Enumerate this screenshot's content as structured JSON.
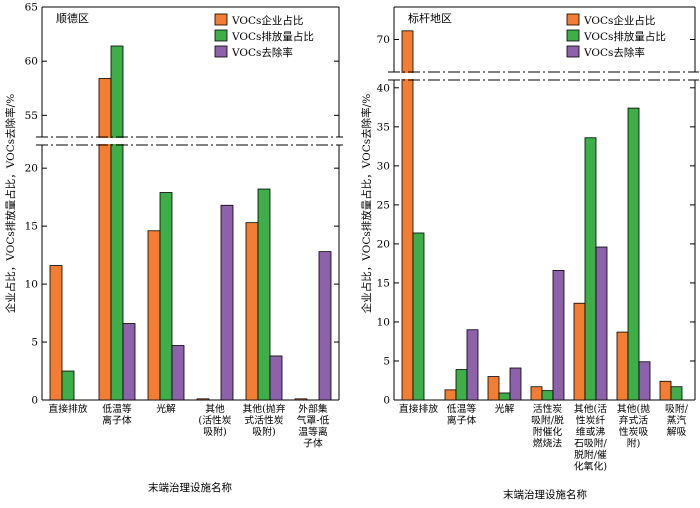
{
  "colors": {
    "share": "#F37D33",
    "emission": "#3EAE49",
    "removal": "#8E62AA"
  },
  "ylabel": "企业占比，VOCs排放量占比，VOCs去除率/%",
  "xlabel": "末端治理设施名称",
  "legend": [
    "VOCs企业占比",
    "VOCs排放量占比",
    "VOCs去除率"
  ],
  "chart_data": [
    {
      "type": "bar",
      "title": "顺德区",
      "xlabel": "末端治理设施名称",
      "ylabel": "企业占比，VOCs排放量占比，VOCs去除率/%",
      "axis_break": {
        "lower": [
          0,
          22
        ],
        "upper": [
          53,
          65
        ]
      },
      "yticks_lower": [
        0,
        5,
        10,
        15,
        20
      ],
      "yticks_upper": [
        55,
        60,
        65
      ],
      "legend_position": "top-right",
      "categories": [
        [
          "直接排放"
        ],
        [
          "低温等",
          "离子体"
        ],
        [
          "光解"
        ],
        [
          "其他",
          "(活性炭",
          "吸附)"
        ],
        [
          "其他(抛弃",
          "式活性炭",
          "吸附)"
        ],
        [
          "外部集",
          "气罩-低",
          "温等离",
          "子体"
        ]
      ],
      "series": [
        {
          "name": "VOCs企业占比",
          "values": [
            11.6,
            58.4,
            14.6,
            0.1,
            15.3,
            0.1
          ]
        },
        {
          "name": "VOCs排放量占比",
          "values": [
            2.5,
            61.4,
            17.9,
            0,
            18.2,
            0
          ]
        },
        {
          "name": "VOCs去除率",
          "values": [
            0,
            6.6,
            4.7,
            16.8,
            3.8,
            12.8
          ]
        }
      ]
    },
    {
      "type": "bar",
      "title": "标杆地区",
      "xlabel": "末端治理设施名称",
      "ylabel": "企业占比，VOCs排放量占比，VOCs去除率/%",
      "axis_break": {
        "lower": [
          0,
          41
        ],
        "upper": [
          67,
          73
        ]
      },
      "yticks_lower": [
        0,
        5,
        10,
        15,
        20,
        25,
        30,
        35,
        40
      ],
      "yticks_upper": [
        70
      ],
      "legend_position": "top-right",
      "categories": [
        [
          "直接排放"
        ],
        [
          "低温等",
          "离子体"
        ],
        [
          "光解"
        ],
        [
          "活性炭",
          "吸附/脱",
          "附催化",
          "燃烧法"
        ],
        [
          "其他(活",
          "性炭纤",
          "维或沸",
          "石吸附/",
          "脱附/催",
          "化氧化)"
        ],
        [
          "其他(抛",
          "弃式活",
          "性炭吸",
          "附)"
        ],
        [
          "吸附/",
          "蒸汽",
          "解吸"
        ]
      ],
      "series": [
        {
          "name": "VOCs企业占比",
          "values": [
            70.8,
            1.3,
            3.0,
            1.7,
            12.4,
            8.7,
            2.4
          ]
        },
        {
          "name": "VOCs排放量占比",
          "values": [
            21.4,
            3.9,
            0.9,
            1.2,
            33.6,
            37.4,
            1.7
          ]
        },
        {
          "name": "VOCs去除率",
          "values": [
            0,
            9.0,
            4.1,
            16.6,
            19.6,
            4.9,
            0
          ]
        }
      ]
    }
  ]
}
